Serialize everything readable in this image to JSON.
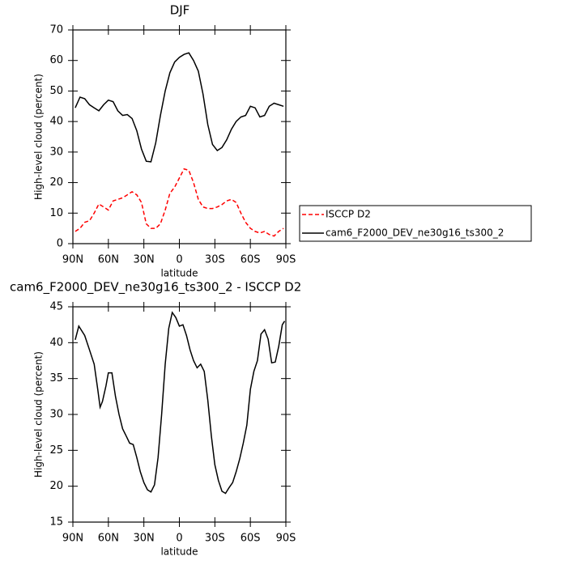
{
  "chart_data": [
    {
      "type": "line",
      "title": "DJF",
      "xlabel": "latitude",
      "ylabel": "High-level cloud (percent)",
      "x": [
        88,
        84,
        80,
        76,
        72,
        68,
        64,
        60,
        56,
        52,
        48,
        44,
        40,
        36,
        32,
        28,
        24,
        20,
        16,
        12,
        8,
        4,
        0,
        -4,
        -8,
        -12,
        -16,
        -20,
        -24,
        -28,
        -32,
        -36,
        -40,
        -44,
        -48,
        -52,
        -56,
        -60,
        -64,
        -68,
        -72,
        -76,
        -80,
        -84,
        -88
      ],
      "series": [
        {
          "name": "ISCCP D2",
          "color": "#ff0000",
          "line_style": "dashed",
          "values": [
            4,
            5,
            7,
            7.5,
            10,
            13,
            12,
            11,
            14,
            14.5,
            15,
            16,
            17,
            16,
            13.5,
            6.5,
            5,
            5,
            6.5,
            11,
            16.5,
            18.5,
            21.5,
            24.5,
            24,
            20,
            14.5,
            12,
            11.5,
            11.5,
            12,
            12.8,
            14,
            14.5,
            13.5,
            10,
            7,
            5,
            4,
            3.5,
            4,
            3,
            2.5,
            4,
            5
          ]
        },
        {
          "name": "cam6_F2000_DEV_ne30g16_ts300_2",
          "color": "#000000",
          "line_style": "solid",
          "values": [
            44.5,
            48,
            47.5,
            45.5,
            44.5,
            43.5,
            45.5,
            47,
            46.5,
            43.5,
            42,
            42.3,
            41,
            37,
            31,
            27,
            26.8,
            33,
            42,
            50,
            56,
            59.5,
            61,
            62,
            62.5,
            60,
            56.5,
            49,
            39,
            32.5,
            30.5,
            31.5,
            34,
            37.5,
            40,
            41.5,
            42,
            45,
            44.5,
            41.5,
            42,
            45,
            46,
            45.5,
            45
          ]
        }
      ],
      "xlim": [
        90,
        -90
      ],
      "xticks": [
        {
          "value": 90,
          "label": "90N"
        },
        {
          "value": 60,
          "label": "60N"
        },
        {
          "value": 30,
          "label": "30N"
        },
        0,
        {
          "value": -30,
          "label": "30S"
        },
        {
          "value": -60,
          "label": "60S"
        },
        {
          "value": -90,
          "label": "90S"
        }
      ],
      "ylim": [
        0,
        70
      ],
      "yticks": [
        0,
        10,
        20,
        30,
        40,
        50,
        60,
        70
      ],
      "legend": "right"
    },
    {
      "type": "line",
      "title": "cam6_F2000_DEV_ne30g16_ts300_2 - ISCCP D2",
      "xlabel": "latitude",
      "ylabel": "High-level cloud (percent)",
      "x": [
        88,
        85,
        80,
        76,
        72,
        69,
        67,
        65,
        62,
        60,
        57,
        54,
        51,
        48,
        45,
        42,
        39,
        36,
        33,
        30,
        27,
        24,
        21,
        18,
        15,
        12,
        9,
        6,
        3,
        0,
        -3,
        -6,
        -9,
        -12,
        -15,
        -18,
        -21,
        -24,
        -27,
        -30,
        -33,
        -36,
        -39,
        -42,
        -45,
        -48,
        -51,
        -54,
        -57,
        -60,
        -63,
        -66,
        -69,
        -72,
        -75,
        -78,
        -81,
        -84,
        -87,
        -89
      ],
      "values": [
        40.4,
        42.3,
        41,
        39,
        37,
        33.5,
        31,
        31.8,
        34,
        35.8,
        35.8,
        32.5,
        30,
        28,
        27,
        26,
        25.8,
        24,
        22,
        20.5,
        19.5,
        19.2,
        20.2,
        24,
        30,
        37,
        42,
        44.2,
        43.5,
        42.3,
        42.5,
        41,
        39,
        37.5,
        36.5,
        37,
        36,
        32,
        27,
        23,
        20.8,
        19.3,
        19,
        19.8,
        20.5,
        22,
        23.8,
        26,
        28.5,
        33.5,
        36,
        37.5,
        41.2,
        41.8,
        40.5,
        37.2,
        37.3,
        39.5,
        42.5,
        43
      ],
      "color": "#000000",
      "xlim": [
        90,
        -90
      ],
      "xticks": [
        {
          "value": 90,
          "label": "90N"
        },
        {
          "value": 60,
          "label": "60N"
        },
        {
          "value": 30,
          "label": "30N"
        },
        0,
        {
          "value": -30,
          "label": "30S"
        },
        {
          "value": -60,
          "label": "60S"
        },
        {
          "value": -90,
          "label": "90S"
        }
      ],
      "ylim": [
        15,
        45
      ],
      "yticks": [
        15,
        20,
        25,
        30,
        35,
        40,
        45
      ]
    }
  ]
}
